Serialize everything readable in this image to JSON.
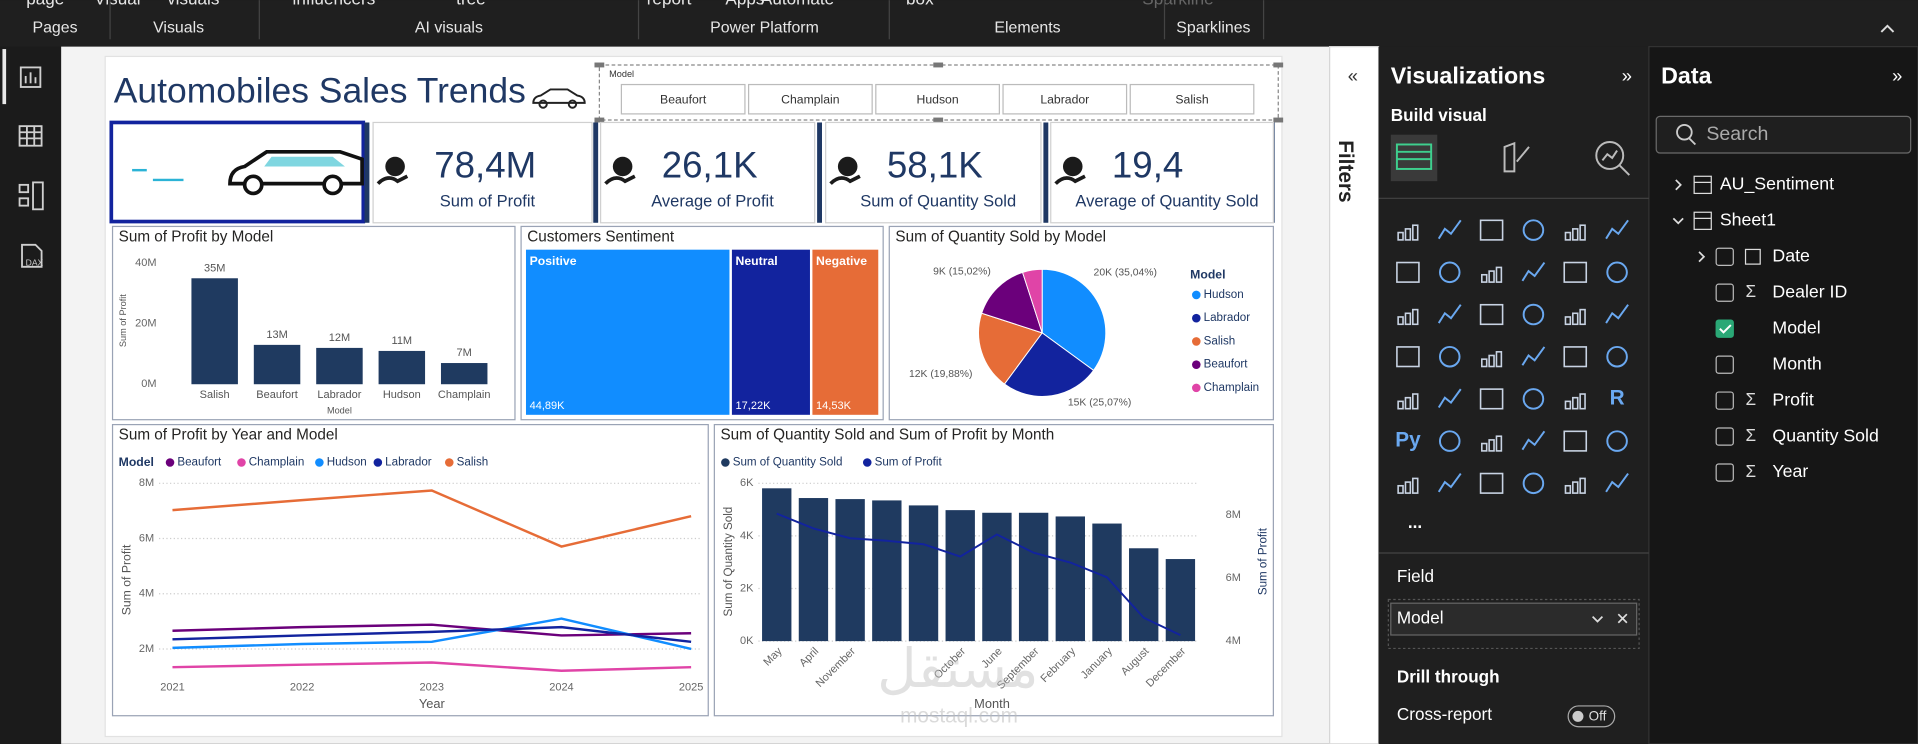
{
  "ribbon": {
    "top_items": [
      "page",
      "Visual",
      "visuals",
      "influencers",
      "tree",
      "report",
      "Apps",
      "Automate",
      "box",
      "Sparkline"
    ],
    "groups": [
      "Pages",
      "Visuals",
      "AI visuals",
      "Power Platform",
      "Elements",
      "Sparklines"
    ]
  },
  "report": {
    "title": "Automobiles Sales Trends",
    "slicer": {
      "title": "Model",
      "items": [
        "Beaufort",
        "Champlain",
        "Hudson",
        "Labrador",
        "Salish"
      ]
    },
    "kpis": [
      {
        "value": "78,4M",
        "label": "Sum of Profit"
      },
      {
        "value": "26,1K",
        "label": "Average of Profit"
      },
      {
        "value": "58,1K",
        "label": "Sum of Quantity Sold"
      },
      {
        "value": "19,4",
        "label": "Average of Quantity Sold"
      }
    ]
  },
  "chart_data": [
    {
      "type": "bar",
      "title": "Sum of Profit by Model",
      "x_label": "Model",
      "y_label": "Sum of Profit",
      "categories": [
        "Salish",
        "Beaufort",
        "Labrador",
        "Hudson",
        "Champlain"
      ],
      "values": [
        35000000,
        13000000,
        12000000,
        11000000,
        7000000
      ],
      "value_labels": [
        "35M",
        "13M",
        "12M",
        "11M",
        "7M"
      ],
      "color": "#1f3a60",
      "ylim": [
        0,
        40000000
      ],
      "yticks": [
        {
          "value": 0,
          "label": "0M"
        },
        {
          "value": 20000000,
          "label": "20M"
        },
        {
          "value": 40000000,
          "label": "40M"
        }
      ]
    },
    {
      "type": "treemap",
      "title": "Customers Sentiment",
      "categories": [
        "Positive",
        "Neutral",
        "Negative"
      ],
      "values": [
        44890,
        17220,
        14530
      ],
      "value_labels": [
        "44,89K",
        "17,22K",
        "14,53K"
      ],
      "colors": [
        "#118dff",
        "#12239e",
        "#e66c37"
      ]
    },
    {
      "type": "pie",
      "title": "Sum of Quantity Sold by Model",
      "legend_title": "Model",
      "categories": [
        "Hudson",
        "Labrador",
        "Salish",
        "Beaufort",
        "Champlain"
      ],
      "values": [
        20358,
        14565,
        11550,
        8727,
        2900
      ],
      "value_labels": [
        "20K (35,04%)",
        "15K (25,07%)",
        "12K (19,88%)",
        "9K (15,02%)",
        null
      ],
      "colors": [
        "#118dff",
        "#12239e",
        "#e66c37",
        "#6b007b",
        "#e044a7"
      ]
    },
    {
      "type": "line",
      "title": "Sum of Profit by Year and Model",
      "legend_title": "Model",
      "x_label": "Year",
      "y_label": "Sum of Profit",
      "x": [
        2021,
        2022,
        2023,
        2024,
        2025
      ],
      "xlim": [
        2021,
        2025
      ],
      "xticks": [
        2021,
        2022,
        2023,
        2024,
        2025
      ],
      "ylim": [
        1000000,
        8000000
      ],
      "yticks": [
        {
          "value": 2000000,
          "label": "2M"
        },
        {
          "value": 4000000,
          "label": "4M"
        },
        {
          "value": 6000000,
          "label": "6M"
        },
        {
          "value": 8000000,
          "label": "8M"
        }
      ],
      "grid": true,
      "series": [
        {
          "name": "Beaufort",
          "color": "#6b007b",
          "values": [
            2660000,
            2790000,
            2880000,
            2490000,
            2570000
          ]
        },
        {
          "name": "Champlain",
          "color": "#e044a7",
          "values": [
            1340000,
            1430000,
            1510000,
            1210000,
            1340000
          ]
        },
        {
          "name": "Hudson",
          "color": "#118dff",
          "values": [
            2040000,
            2180000,
            2260000,
            3100000,
            2000000
          ]
        },
        {
          "name": "Labrador",
          "color": "#12239e",
          "values": [
            2350000,
            2490000,
            2620000,
            2790000,
            2260000
          ]
        },
        {
          "name": "Salish",
          "color": "#e66c37",
          "values": [
            7030000,
            7390000,
            7740000,
            5710000,
            6810000
          ]
        }
      ]
    },
    {
      "type": "combo",
      "title": "Sum of Quantity Sold and Sum of Profit by Month",
      "x_label": "Month",
      "y_label": "Sum of Quantity Sold",
      "y2_label": "Sum of Profit",
      "categories": [
        "May",
        "April",
        "November",
        null,
        null,
        "October",
        "June",
        "September",
        "February",
        "January",
        "August",
        "December"
      ],
      "ylim": [
        0,
        6000
      ],
      "yticks": [
        {
          "value": 0,
          "label": "0K"
        },
        {
          "value": 2000,
          "label": "2K"
        },
        {
          "value": 4000,
          "label": "4K"
        },
        {
          "value": 6000,
          "label": "6K"
        }
      ],
      "y2lim": [
        4000000,
        9000000
      ],
      "y2ticks": [
        {
          "value": 4000000,
          "label": "4M"
        },
        {
          "value": 6000000,
          "label": "6M"
        },
        {
          "value": 8000000,
          "label": "8M"
        }
      ],
      "grid": true,
      "series": [
        {
          "name": "Sum of Quantity Sold",
          "mark": "bar",
          "color": "#1f3a60",
          "values": [
            5810,
            5440,
            5400,
            5350,
            5160,
            4980,
            4880,
            4880,
            4740,
            4470,
            3530,
            3120
          ]
        },
        {
          "name": "Sum of Profit",
          "mark": "line",
          "axis": "y2",
          "color": "#12239e",
          "values": [
            8040000,
            7570000,
            7260000,
            7180000,
            7070000,
            6680000,
            7380000,
            6800000,
            6490000,
            6020000,
            4740000,
            4190000
          ]
        }
      ]
    }
  ],
  "watermark": [
    "مستقل",
    "mostaql.com"
  ],
  "filters": {
    "title": "Filters"
  },
  "visualizations": {
    "title": "Visualizations",
    "subtitle": "Build visual",
    "icon_texts": [
      "R",
      "Py"
    ],
    "more": "...",
    "field_label": "Field",
    "field_value": "Model",
    "drill": "Drill through",
    "cross_report": "Cross-report",
    "toggle": "Off"
  },
  "data_pane": {
    "title": "Data",
    "search": "Search",
    "tables": [
      {
        "name": "AU_Sentiment"
      },
      {
        "name": "Sheet1",
        "fields": [
          {
            "name": "Date",
            "date": true
          },
          {
            "name": "Dealer ID",
            "sum": true
          },
          {
            "name": "Model",
            "checked": true
          },
          {
            "name": "Month"
          },
          {
            "name": "Profit",
            "sum": true
          },
          {
            "name": "Quantity Sold",
            "sum": true
          },
          {
            "name": "Year",
            "sum": true
          }
        ]
      }
    ]
  }
}
